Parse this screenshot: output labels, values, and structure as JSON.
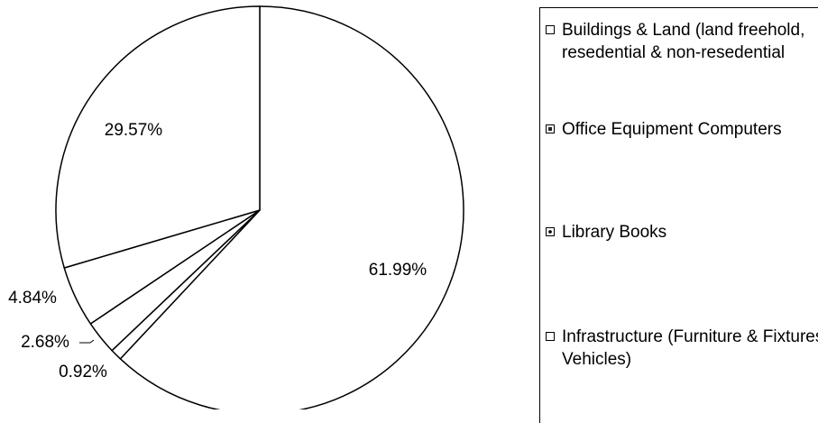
{
  "chart_data": {
    "type": "pie",
    "categories": [
      "Buildings & Land (land freehold, resedential & non-resedential",
      "Office Equipment Computers",
      "Library Books",
      "Infrastructure (Furniture & Fixtures, Vehicles)",
      null
    ],
    "values": [
      61.99,
      0.92,
      2.68,
      4.84,
      29.57
    ],
    "value_labels": [
      "61.99%",
      "0.92%",
      "2.68%",
      "4.84%",
      "29.57%"
    ],
    "colors": [
      "#ffffff",
      "#ffffff",
      "#ffffff",
      "#ffffff",
      "#ffffff"
    ]
  }
}
